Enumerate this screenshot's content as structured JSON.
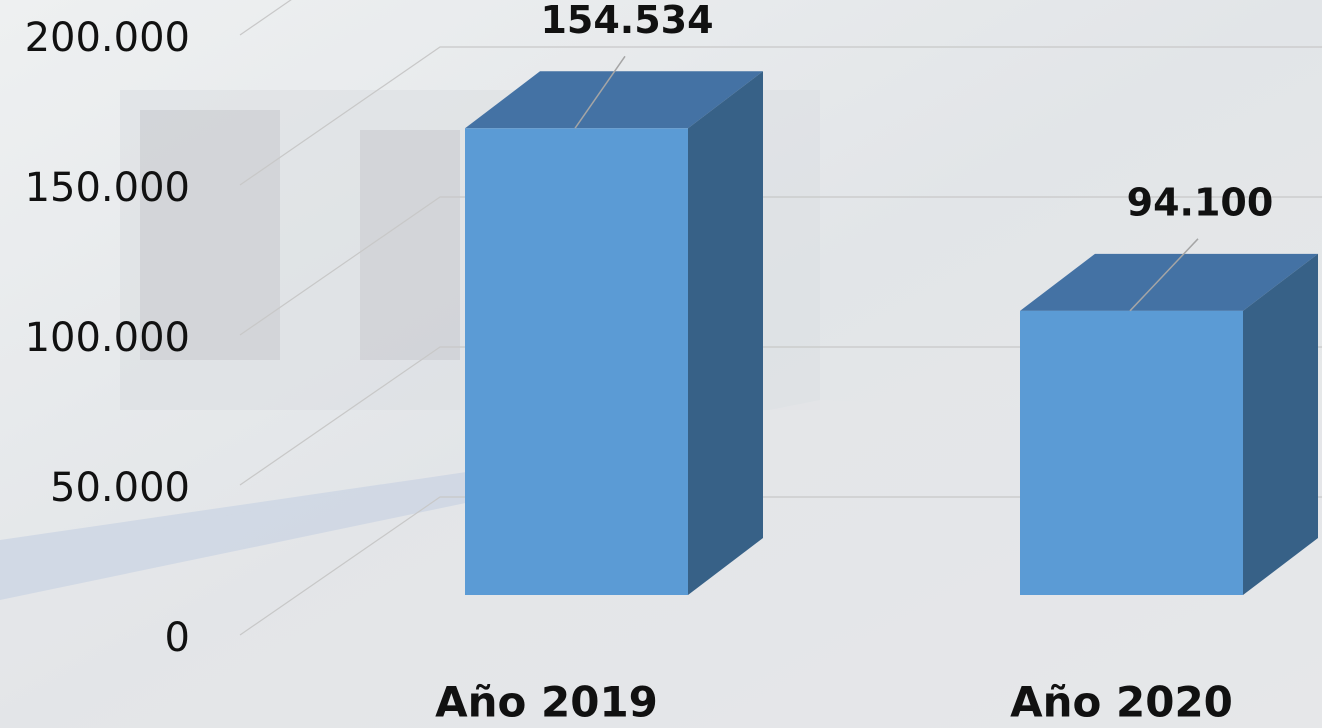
{
  "chart_data": {
    "type": "bar3d",
    "categories": [
      "Año 2019",
      "Año 2020"
    ],
    "values": [
      154534,
      94100
    ],
    "value_labels": [
      "154.534",
      "94.100"
    ],
    "color": "#5b9bd5",
    "ylim": [
      0,
      200000
    ],
    "yticks": [
      0,
      {
        "value": 50000,
        "label": "50.000"
      },
      {
        "value": 100000,
        "label": "100.000"
      },
      {
        "value": 150000,
        "label": "150.000"
      },
      {
        "value": 200000,
        "label": "200.000"
      }
    ],
    "grid": true
  }
}
